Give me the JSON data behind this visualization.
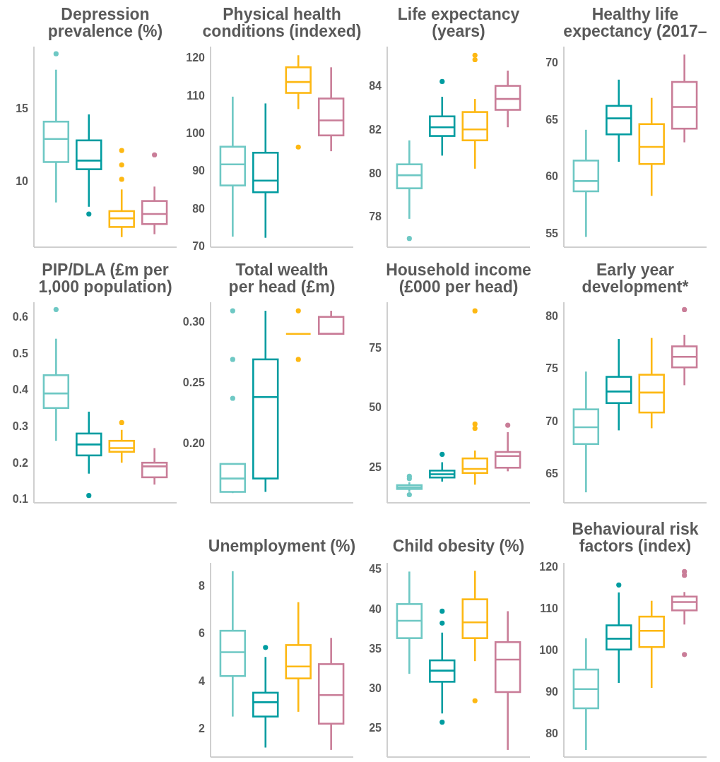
{
  "chart_data": [
    {
      "type": "box",
      "title": "Depression prevalence (%)",
      "categories": [
        null,
        null,
        null,
        null
      ],
      "colors": [
        "#6ec8c4",
        "#009ca0",
        "#fdb813",
        "#c97d98"
      ],
      "ylim": [
        5.4,
        19.3
      ],
      "yticks": [
        10,
        15
      ],
      "tick_labels": "y",
      "boxes": [
        {
          "low": 8.5,
          "q1": 11.3,
          "median": 12.9,
          "q3": 14.1,
          "high": 17.7,
          "outliers": [
            18.8
          ]
        },
        {
          "low": 8.2,
          "q1": 10.8,
          "median": 11.4,
          "q3": 12.8,
          "high": 14.6,
          "outliers": [
            7.7
          ]
        },
        {
          "low": 6.1,
          "q1": 6.8,
          "median": 7.4,
          "q3": 7.9,
          "high": 9.4,
          "outliers": [
            12.1,
            11.1,
            10.1
          ]
        },
        {
          "low": 6.3,
          "q1": 7.0,
          "median": 7.7,
          "q3": 8.6,
          "high": 9.6,
          "outliers": [
            11.8
          ]
        }
      ]
    },
    {
      "type": "box",
      "title": "Physical health conditions (indexed)",
      "categories": [
        null,
        null,
        null,
        null
      ],
      "colors": [
        "#6ec8c4",
        "#009ca0",
        "#fdb813",
        "#c97d98"
      ],
      "ylim": [
        69.7,
        123
      ],
      "yticks": [
        70,
        80,
        90,
        100,
        110,
        120
      ],
      "tick_labels": "y",
      "boxes": [
        {
          "low": 72.5,
          "q1": 86.1,
          "median": 91.7,
          "q3": 96.4,
          "high": 109.7
        },
        {
          "low": 72.2,
          "q1": 84.3,
          "median": 87.4,
          "q3": 94.8,
          "high": 107.9
        },
        {
          "low": 106.4,
          "q1": 110.7,
          "median": 113.6,
          "q3": 117.5,
          "high": 120.7,
          "outliers": [
            96.3
          ]
        },
        {
          "low": 95.2,
          "q1": 99.4,
          "median": 103.4,
          "q3": 109.2,
          "high": 117.5
        }
      ]
    },
    {
      "type": "box",
      "title": "Life expectancy (years)",
      "categories": [
        null,
        null,
        null,
        null
      ],
      "colors": [
        "#6ec8c4",
        "#009ca0",
        "#fdb813",
        "#c97d98"
      ],
      "ylim": [
        76.6,
        85.8
      ],
      "yticks": [
        78,
        80,
        82,
        84
      ],
      "tick_labels": "y",
      "boxes": [
        {
          "low": 77.9,
          "q1": 79.3,
          "median": 79.9,
          "q3": 80.4,
          "high": 81.5,
          "outliers": [
            77.0
          ]
        },
        {
          "low": 80.8,
          "q1": 81.7,
          "median": 82.1,
          "q3": 82.6,
          "high": 83.5,
          "outliers": [
            84.2
          ]
        },
        {
          "low": 80.2,
          "q1": 81.5,
          "median": 82.0,
          "q3": 82.8,
          "high": 83.4,
          "outliers": [
            85.4,
            85.2
          ]
        },
        {
          "low": 82.1,
          "q1": 82.9,
          "median": 83.4,
          "q3": 84.0,
          "high": 84.7
        }
      ]
    },
    {
      "type": "box",
      "title": "Healthy life expectancy (2017–",
      "categories": [
        null,
        null,
        null,
        null
      ],
      "colors": [
        "#6ec8c4",
        "#009ca0",
        "#fdb813",
        "#c97d98"
      ],
      "ylim": [
        53.8,
        71.4
      ],
      "yticks": [
        55,
        60,
        65,
        70
      ],
      "tick_labels": "y",
      "boxes": [
        {
          "low": 54.7,
          "q1": 58.7,
          "median": 59.6,
          "q3": 61.4,
          "high": 64.1
        },
        {
          "low": 61.3,
          "q1": 63.7,
          "median": 65.1,
          "q3": 66.2,
          "high": 68.5
        },
        {
          "low": 58.3,
          "q1": 61.1,
          "median": 62.6,
          "q3": 64.6,
          "high": 66.9
        },
        {
          "low": 63.0,
          "q1": 64.2,
          "median": 66.1,
          "q3": 68.3,
          "high": 70.7
        }
      ]
    },
    {
      "type": "box",
      "title": "PIP/DLA (£m per 1,000 population)",
      "categories": [
        null,
        null,
        null,
        null
      ],
      "colors": [
        "#6ec8c4",
        "#009ca0",
        "#fdb813",
        "#c97d98"
      ],
      "ylim": [
        0.09,
        0.64
      ],
      "yticks": [
        0.1,
        0.2,
        0.3,
        0.4,
        0.5,
        0.6
      ],
      "tick_labels": "y",
      "boxes": [
        {
          "low": 0.26,
          "q1": 0.35,
          "median": 0.39,
          "q3": 0.44,
          "high": 0.54,
          "outliers": [
            0.62
          ]
        },
        {
          "low": 0.17,
          "q1": 0.22,
          "median": 0.25,
          "q3": 0.28,
          "high": 0.34,
          "outliers": [
            0.11
          ]
        },
        {
          "low": 0.2,
          "q1": 0.23,
          "median": 0.24,
          "q3": 0.26,
          "high": 0.29,
          "outliers": [
            0.31
          ]
        },
        {
          "low": 0.14,
          "q1": 0.16,
          "median": 0.19,
          "q3": 0.2,
          "high": 0.24
        }
      ]
    },
    {
      "type": "box",
      "title": "Total wealth per head (£m)",
      "categories": [
        null,
        null,
        null,
        null
      ],
      "colors": [
        "#6ec8c4",
        "#009ca0",
        "#fdb813",
        "#c97d98"
      ],
      "ylim": [
        0.151,
        0.316
      ],
      "yticks": [
        {
          "value": 0.2,
          "label": "0.20"
        },
        0.25,
        {
          "value": 0.3,
          "label": "0.30"
        }
      ],
      "tick_labels": "y",
      "boxes": [
        {
          "low": 0.159,
          "q1": 0.16,
          "median": 0.171,
          "q3": 0.183,
          "high": 0.183,
          "outliers": [
            0.309,
            0.269,
            0.237
          ]
        },
        {
          "low": 0.16,
          "q1": 0.171,
          "median": 0.238,
          "q3": 0.269,
          "high": 0.309
        },
        {
          "low": 0.29,
          "q1": 0.29,
          "median": 0.29,
          "q3": 0.29,
          "high": 0.29,
          "outliers": [
            0.309,
            0.269
          ]
        },
        {
          "low": 0.29,
          "q1": 0.29,
          "median": 0.29,
          "q3": 0.304,
          "high": 0.309
        }
      ]
    },
    {
      "type": "box",
      "title": "Household income (£000 per head)",
      "categories": [
        null,
        null,
        null,
        null
      ],
      "colors": [
        "#6ec8c4",
        "#009ca0",
        "#fdb813",
        "#c97d98"
      ],
      "ylim": [
        10,
        94
      ],
      "yticks": [
        25,
        50,
        75
      ],
      "tick_labels": "y",
      "boxes": [
        {
          "low": 14.6,
          "q1": 15.8,
          "median": 16.5,
          "q3": 17.4,
          "high": 18.6,
          "outliers": [
            21.1,
            20.1,
            13.4
          ]
        },
        {
          "low": 18.9,
          "q1": 20.6,
          "median": 22.0,
          "q3": 23.5,
          "high": 27.0,
          "outliers": [
            30.3
          ]
        },
        {
          "low": 17.6,
          "q1": 22.5,
          "median": 24.2,
          "q3": 28.6,
          "high": 31.9,
          "outliers": [
            90.4,
            43.0,
            41.2
          ]
        },
        {
          "low": 23.2,
          "q1": 24.7,
          "median": 29.6,
          "q3": 31.3,
          "high": 39.6,
          "outliers": [
            42.5
          ]
        }
      ]
    },
    {
      "type": "box",
      "title": "Early year development*",
      "categories": [
        null,
        null,
        null,
        null
      ],
      "colors": [
        "#6ec8c4",
        "#009ca0",
        "#fdb813",
        "#c97d98"
      ],
      "ylim": [
        62.2,
        81.3
      ],
      "yticks": [
        65,
        70,
        75,
        80
      ],
      "tick_labels": "y",
      "boxes": [
        {
          "low": 63.2,
          "q1": 67.8,
          "median": 69.4,
          "q3": 71.1,
          "high": 74.7
        },
        {
          "low": 69.1,
          "q1": 71.7,
          "median": 72.8,
          "q3": 74.2,
          "high": 77.8
        },
        {
          "low": 69.3,
          "q1": 70.8,
          "median": 72.7,
          "q3": 74.4,
          "high": 77.9
        },
        {
          "low": 73.4,
          "q1": 75.1,
          "median": 76.1,
          "q3": 77.1,
          "high": 78.2,
          "outliers": [
            80.6
          ]
        }
      ]
    },
    {
      "type": "box",
      "title": "Unemployment (%)",
      "categories": [
        null,
        null,
        null,
        null
      ],
      "colors": [
        "#6ec8c4",
        "#009ca0",
        "#fdb813",
        "#c97d98"
      ],
      "ylim": [
        0.8,
        8.95
      ],
      "yticks": [
        2,
        4,
        6,
        8
      ],
      "tick_labels": "y",
      "boxes": [
        {
          "low": 2.5,
          "q1": 4.2,
          "median": 5.2,
          "q3": 6.1,
          "high": 8.6
        },
        {
          "low": 1.2,
          "q1": 2.5,
          "median": 3.1,
          "q3": 3.5,
          "high": 5.0,
          "outliers": [
            5.4
          ]
        },
        {
          "low": 2.7,
          "q1": 4.1,
          "median": 4.6,
          "q3": 5.5,
          "high": 7.3
        },
        {
          "low": 1.1,
          "q1": 2.2,
          "median": 3.4,
          "q3": 4.7,
          "high": 5.8
        }
      ]
    },
    {
      "type": "box",
      "title": "Child obesity (%)",
      "categories": [
        null,
        null,
        null,
        null
      ],
      "colors": [
        "#6ec8c4",
        "#009ca0",
        "#fdb813",
        "#c97d98"
      ],
      "ylim": [
        21.3,
        45.8
      ],
      "yticks": [
        25,
        30,
        35,
        40,
        45
      ],
      "tick_labels": "y",
      "boxes": [
        {
          "low": 31.8,
          "q1": 36.3,
          "median": 38.5,
          "q3": 40.6,
          "high": 44.7
        },
        {
          "low": 26.8,
          "q1": 30.8,
          "median": 32.2,
          "q3": 33.5,
          "high": 37.0,
          "outliers": [
            39.7,
            38.2,
            25.7
          ]
        },
        {
          "low": 33.4,
          "q1": 36.3,
          "median": 38.3,
          "q3": 41.2,
          "high": 44.8,
          "outliers": [
            28.4
          ]
        },
        {
          "low": 22.2,
          "q1": 29.5,
          "median": 33.6,
          "q3": 35.8,
          "high": 39.7
        }
      ]
    },
    {
      "type": "box",
      "title": "Behavioural risk factors (index)",
      "categories": [
        null,
        null,
        null,
        null
      ],
      "colors": [
        "#6ec8c4",
        "#009ca0",
        "#fdb813",
        "#c97d98"
      ],
      "ylim": [
        74.4,
        121
      ],
      "yticks": [
        80,
        90,
        100,
        110,
        120
      ],
      "tick_labels": "y",
      "boxes": [
        {
          "low": 76.1,
          "q1": 86.1,
          "median": 90.7,
          "q3": 95.4,
          "high": 102.9
        },
        {
          "low": 92.2,
          "q1": 100.2,
          "median": 102.8,
          "q3": 106.0,
          "high": 113.9,
          "outliers": [
            115.7
          ]
        },
        {
          "low": 91.0,
          "q1": 100.8,
          "median": 104.7,
          "q3": 108.1,
          "high": 111.9
        },
        {
          "low": 106.2,
          "q1": 109.6,
          "median": 111.6,
          "q3": 112.9,
          "high": 114.0,
          "outliers": [
            118.9,
            118.0,
            99.0
          ]
        }
      ]
    }
  ]
}
